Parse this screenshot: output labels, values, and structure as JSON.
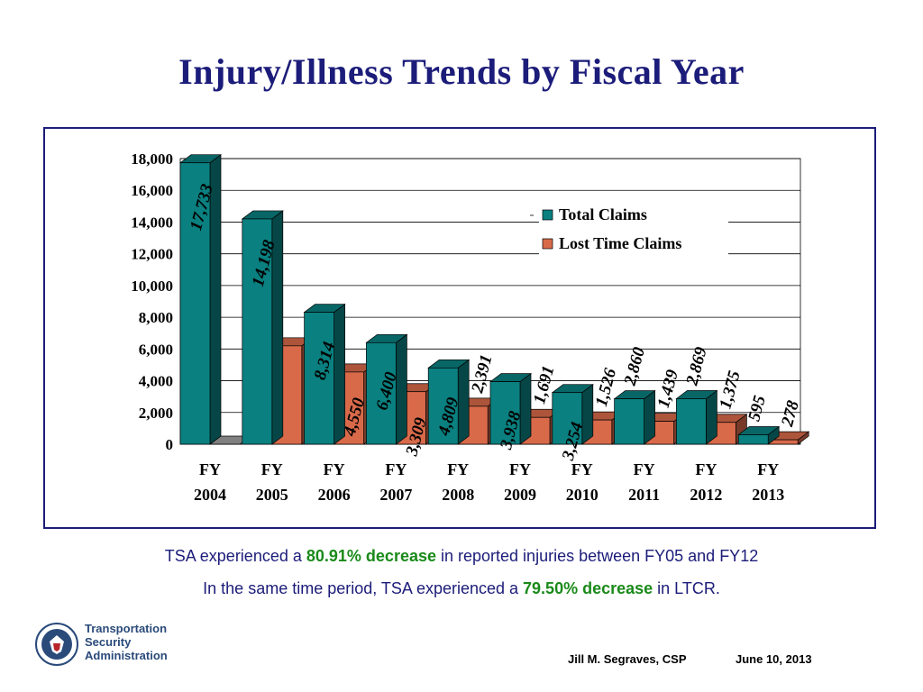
{
  "slide": {
    "title": "Injury/Illness Trends by Fiscal Year",
    "caption": {
      "line1_pre": "TSA experienced a ",
      "line1_highlight": "80.91% decrease",
      "line1_post": " in reported injuries between FY05 and FY12",
      "line2_pre": "In the same time period, TSA experienced a ",
      "line2_highlight": "79.50% decrease",
      "line2_post": " in LTCR."
    },
    "logo": {
      "line1": "Transportation",
      "line2": "Security",
      "line3": "Administration",
      "icon": "dhs-seal-icon"
    },
    "footer": {
      "author": "Jill M. Segraves, CSP",
      "date": "June 10, 2013"
    }
  },
  "chart_data": {
    "type": "bar",
    "title": "",
    "xlabel": "",
    "ylabel": "",
    "categories": [
      [
        "FY",
        "2004"
      ],
      [
        "FY",
        "2005"
      ],
      [
        "FY",
        "2006"
      ],
      [
        "FY",
        "2007"
      ],
      [
        "FY",
        "2008"
      ],
      [
        "FY",
        "2009"
      ],
      [
        "FY",
        "2010"
      ],
      [
        "FY",
        "2011"
      ],
      [
        "FY",
        "2012"
      ],
      [
        "FY",
        "2013"
      ]
    ],
    "ylim": [
      0,
      18000
    ],
    "yticks": [
      "0",
      "2,000",
      "4,000",
      "6,000",
      "8,000",
      "10,000",
      "12,000",
      "14,000",
      "16,000",
      "18,000"
    ],
    "grid": true,
    "legend_position": "top-right",
    "series": [
      {
        "name": "Total Claims",
        "color": "#0a8080",
        "values": [
          17733,
          14198,
          8314,
          6400,
          4809,
          3938,
          3254,
          2860,
          2869,
          595
        ],
        "labels": [
          "17,733",
          "14,198",
          "8,314",
          "6,400",
          "4,809",
          "3,938",
          "3,254",
          "2,860",
          "2,869",
          "595"
        ]
      },
      {
        "name": "Lost Time Claims",
        "color": "#d86a4a",
        "values": [
          0,
          6200,
          4550,
          3309,
          2391,
          1691,
          1526,
          1439,
          1375,
          278
        ],
        "labels": [
          "",
          "",
          "4,550",
          "3,309",
          "2,391",
          "1,691",
          "1,526",
          "1,439",
          "1,375",
          "278"
        ]
      }
    ]
  }
}
